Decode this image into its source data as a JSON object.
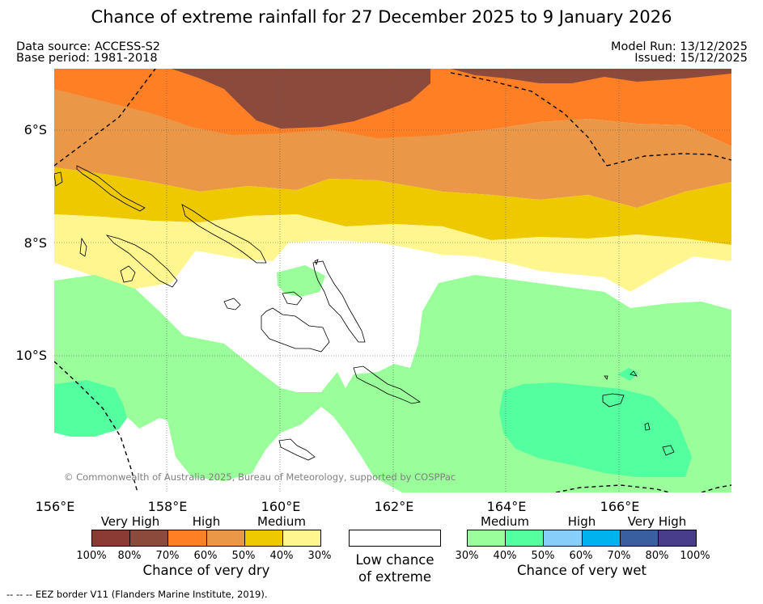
{
  "title": "Chance of extreme rainfall for 27 December 2025 to 9 January 2026",
  "meta": {
    "source": "Data source: ACCESS-S2",
    "base_period": "Base period: 1981-2018",
    "model_run": "Model Run: 13/12/2025",
    "issued": "Issued: 15/12/2025"
  },
  "map": {
    "copyright": "© Commonwealth of Australia 2025, Bureau of Meteorology, supported by COSPPac",
    "lat_labels": [
      "6°S",
      "8°S",
      "10°S"
    ],
    "lon_labels": [
      "156°E",
      "158°E",
      "160°E",
      "162°E",
      "164°E",
      "166°E"
    ]
  },
  "legend": {
    "dry": {
      "categories": [
        "Very High",
        "High",
        "Medium"
      ],
      "colors": [
        "#8b3a34",
        "#8b4a3c",
        "#ff7f24",
        "#ea9848",
        "#eec900",
        "#fff68f"
      ],
      "ticks": [
        "100%",
        "80%",
        "70%",
        "60%",
        "50%",
        "40%",
        "30%"
      ],
      "caption": "Chance of very dry"
    },
    "low": {
      "line1": "Low chance",
      "line2": "of extreme"
    },
    "wet": {
      "categories": [
        "Medium",
        "High",
        "Very High"
      ],
      "colors": [
        "#9aff9a",
        "#54ff9f",
        "#87cefa",
        "#00b2ee",
        "#3a5fa0",
        "#483d8b"
      ],
      "ticks": [
        "30%",
        "40%",
        "50%",
        "60%",
        "70%",
        "80%",
        "100%"
      ],
      "caption": "Chance of very wet"
    }
  },
  "footer": "--  --  -- EEZ border V11 (Flanders Marine Institute, 2019)."
}
